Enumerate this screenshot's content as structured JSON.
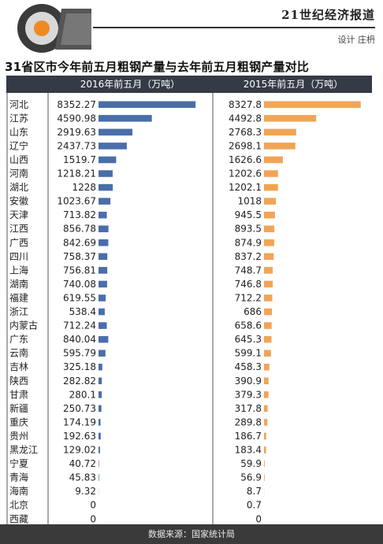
{
  "header": {
    "brand": "21世纪经济报道",
    "designer": "设计 庄枬"
  },
  "title": "31省区市今年前五月粗钢产量与去年前五月粗钢产量对比",
  "footer": {
    "source": "数据来源：国家统计局"
  },
  "colors": {
    "bar_2016": "#4a6ea9",
    "bar_2015": "#f0a555",
    "header_band": "#343b46",
    "footer_band": "#3a3a3a"
  },
  "chart_data": {
    "type": "bar",
    "orientation": "horizontal",
    "categories": [
      "河北",
      "江苏",
      "山东",
      "辽宁",
      "山西",
      "河南",
      "湖北",
      "安徽",
      "天津",
      "江西",
      "广西",
      "四川",
      "上海",
      "湖南",
      "福建",
      "浙江",
      "内蒙古",
      "广东",
      "云南",
      "吉林",
      "陕西",
      "甘肃",
      "新疆",
      "重庆",
      "贵州",
      "黑龙江",
      "宁夏",
      "青海",
      "海南",
      "北京",
      "西藏"
    ],
    "series": [
      {
        "name": "2016年前五月（万吨）",
        "values": [
          8352.27,
          4590.98,
          2919.63,
          2437.73,
          1519.7,
          1218.21,
          1228,
          1023.67,
          713.82,
          856.78,
          842.69,
          758.37,
          756.81,
          740.08,
          619.55,
          538.4,
          712.24,
          840.04,
          595.79,
          325.18,
          282.82,
          280.1,
          250.73,
          174.19,
          192.63,
          129.02,
          40.72,
          45.83,
          9.32,
          0,
          0
        ]
      },
      {
        "name": "2015年前五月（万吨）",
        "values": [
          8327.8,
          4492.8,
          2768.3,
          2698.1,
          1626.6,
          1202.6,
          1202.1,
          1018,
          945.5,
          893.5,
          874.9,
          837.2,
          748.7,
          746.8,
          712.2,
          686,
          658.6,
          645.3,
          599.1,
          458.3,
          390.9,
          379.3,
          317.8,
          289.8,
          186.7,
          183.4,
          59.9,
          56.9,
          8.7,
          0.7,
          0
        ]
      }
    ],
    "xlim": [
      0,
      9500
    ],
    "grid": false,
    "legend": "column headers at top"
  }
}
